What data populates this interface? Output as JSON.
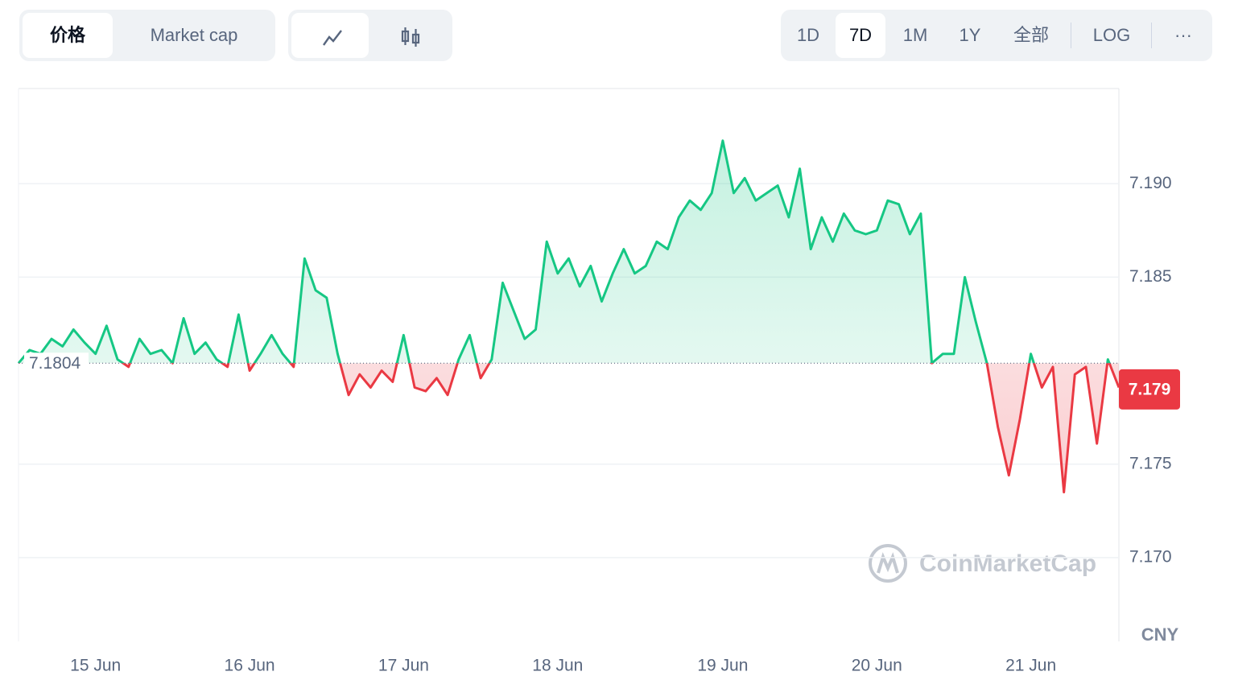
{
  "toolbar": {
    "tabs": [
      "价格",
      "Market cap"
    ],
    "ranges": [
      "1D",
      "7D",
      "1M",
      "1Y",
      "全部",
      "LOG"
    ],
    "more": "···"
  },
  "watermark": "CoinMarketCap",
  "currency": "CNY",
  "chart_data": {
    "type": "line",
    "categories": [
      null,
      null,
      null,
      null,
      null,
      null,
      null,
      "15 Jun",
      null,
      null,
      null,
      null,
      null,
      null,
      null,
      null,
      null,
      null,
      null,
      null,
      null,
      "16 Jun",
      null,
      null,
      null,
      null,
      null,
      null,
      null,
      null,
      null,
      null,
      null,
      null,
      null,
      "17 Jun",
      null,
      null,
      null,
      null,
      null,
      null,
      null,
      null,
      null,
      null,
      null,
      null,
      null,
      "18 Jun",
      null,
      null,
      null,
      null,
      null,
      null,
      null,
      null,
      null,
      null,
      null,
      null,
      null,
      null,
      "19 Jun",
      null,
      null,
      null,
      null,
      null,
      null,
      null,
      null,
      null,
      null,
      null,
      null,
      null,
      "20 Jun",
      null,
      null,
      null,
      null,
      null,
      null,
      null,
      null,
      null,
      null,
      null,
      null,
      null,
      "21 Jun",
      null,
      null,
      null,
      null,
      null,
      null,
      null,
      null
    ],
    "series": [
      {
        "name": "价格",
        "values": [
          7.1804,
          7.1811,
          7.1809,
          7.1817,
          7.1813,
          7.1822,
          7.1815,
          7.1809,
          7.1824,
          7.1806,
          7.1802,
          7.1817,
          7.1809,
          7.1811,
          7.1804,
          7.1828,
          7.1809,
          7.1815,
          7.1806,
          7.1802,
          7.183,
          7.18,
          7.1809,
          7.1819,
          7.1809,
          7.1802,
          7.186,
          7.1843,
          7.1839,
          7.1809,
          7.1787,
          7.1798,
          7.1791,
          7.18,
          7.1794,
          7.1819,
          7.1791,
          7.1789,
          7.1796,
          7.1787,
          7.1806,
          7.1819,
          7.1796,
          7.1806,
          7.1847,
          7.1832,
          7.1817,
          7.1822,
          7.1869,
          7.1852,
          7.186,
          7.1845,
          7.1856,
          7.1837,
          7.1852,
          7.1865,
          7.1852,
          7.1856,
          7.1869,
          7.1865,
          7.1882,
          7.1891,
          7.1886,
          7.1895,
          7.1923,
          7.1895,
          7.1903,
          7.1891,
          7.1895,
          7.1899,
          7.1882,
          7.1908,
          7.1865,
          7.1882,
          7.1869,
          7.1884,
          7.1875,
          7.1873,
          7.1875,
          7.1891,
          7.1889,
          7.1873,
          7.1884,
          7.1804,
          7.1809,
          7.1809,
          7.185,
          7.1826,
          7.1804,
          7.177,
          7.1744,
          7.1774,
          7.1809,
          7.1791,
          7.1802,
          7.1735,
          7.1798,
          7.1802,
          7.1761,
          7.1806,
          7.1791
        ]
      }
    ],
    "baseline": 7.1804,
    "current_price": 7.179,
    "up_color": "#16c784",
    "down_color": "#ea3943",
    "ylim": [
      7.16552,
      7.19509
    ],
    "yticks": [
      {
        "value": 7.17,
        "label": "7.170"
      },
      7.175,
      7.185,
      {
        "value": 7.19,
        "label": "7.190"
      }
    ],
    "grid": true
  }
}
